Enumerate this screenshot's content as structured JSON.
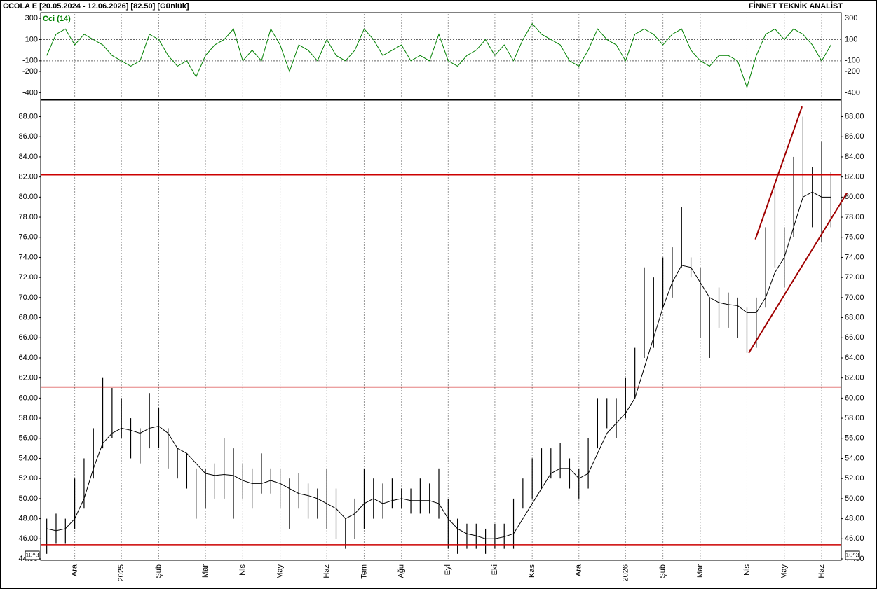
{
  "chart_data": [
    {
      "type": "line",
      "title": "CCOLA E  [20.05.2024 - 12.06.2026]  [82.50]  [Günlük]",
      "subtitle": "FİNNET TEKNİK ANALİST",
      "series": [
        {
          "name": "Cci (14)",
          "color": "#008000",
          "values": [
            -50,
            150,
            200,
            50,
            150,
            100,
            50,
            -50,
            -100,
            -150,
            -100,
            150,
            100,
            -50,
            -150,
            -100,
            -250,
            -50,
            50,
            100,
            200,
            -100,
            0,
            -100,
            200,
            50,
            -200,
            50,
            0,
            -100,
            100,
            -50,
            -100,
            0,
            200,
            100,
            -50,
            0,
            50,
            -100,
            -50,
            -100,
            150,
            -100,
            -150,
            -50,
            0,
            100,
            -50,
            50,
            -100,
            100,
            250,
            150,
            100,
            50,
            -100,
            -150,
            0,
            200,
            100,
            50,
            -100,
            150,
            200,
            150,
            50,
            150,
            200,
            0,
            -100,
            -150,
            -50,
            -50,
            -100,
            -350,
            -50,
            150,
            200,
            100,
            200,
            150,
            50,
            -100,
            50
          ]
        }
      ],
      "ylim": [
        -450,
        340
      ],
      "yticks": [
        300,
        100,
        -100,
        -200,
        -400
      ],
      "grid_values": [
        100,
        -100
      ]
    },
    {
      "type": "ohlc",
      "axis_unit": "10^3",
      "categories": [
        null,
        null,
        null,
        "Ara",
        null,
        null,
        null,
        null,
        "2025",
        null,
        null,
        null,
        "Şub",
        null,
        null,
        null,
        null,
        "Mar",
        null,
        null,
        null,
        "Nis",
        null,
        null,
        null,
        "May",
        null,
        null,
        null,
        null,
        "Haz",
        null,
        null,
        null,
        "Tem",
        null,
        null,
        null,
        "Ağu",
        null,
        null,
        null,
        null,
        "Eyl",
        null,
        null,
        null,
        null,
        "Eki",
        null,
        null,
        null,
        "Kas",
        null,
        null,
        null,
        null,
        "Ara",
        null,
        null,
        null,
        null,
        "2026",
        null,
        null,
        null,
        "Şub",
        null,
        null,
        null,
        "Mar",
        null,
        null,
        null,
        null,
        "Nis",
        null,
        null,
        null,
        "May",
        null,
        null,
        null,
        "Haz",
        null
      ],
      "high": [
        48,
        48.5,
        48,
        52,
        54,
        57,
        62,
        61,
        60,
        58,
        57,
        60.5,
        59,
        57,
        55,
        54.5,
        53,
        53,
        53.5,
        56,
        55,
        53.5,
        53,
        54.5,
        53,
        53,
        52,
        52.5,
        51.5,
        51,
        53,
        51,
        48,
        50,
        53,
        52,
        51.5,
        52,
        51,
        51,
        52,
        51.5,
        53,
        50,
        48,
        47.5,
        47.5,
        47,
        47.5,
        47.5,
        50,
        52,
        54,
        55,
        55,
        55.5,
        54,
        53,
        56,
        60,
        60,
        60,
        62,
        65,
        73,
        72,
        74,
        75,
        79,
        74,
        73,
        70,
        71,
        70.5,
        70,
        69,
        70,
        77,
        81,
        77,
        84,
        88,
        83,
        85.5,
        82.5
      ],
      "low": [
        44.5,
        45.5,
        45.5,
        47,
        49,
        52,
        55,
        56,
        56,
        54,
        53.5,
        55,
        55,
        53,
        52,
        51,
        48,
        49,
        50,
        50,
        48,
        50,
        49,
        50.5,
        50.5,
        49,
        47,
        49,
        48,
        48,
        47,
        46,
        45,
        46,
        47,
        48,
        48,
        49,
        49,
        48.5,
        48.5,
        48.5,
        48,
        45,
        44.5,
        45,
        45,
        44.5,
        45,
        45,
        45,
        49,
        50,
        51,
        52,
        52,
        51,
        50,
        51,
        55,
        57,
        56,
        58,
        60,
        64,
        65,
        69,
        70,
        73,
        72,
        66,
        64,
        67,
        67,
        66,
        64.5,
        65,
        69,
        73,
        71,
        76,
        80,
        77,
        75.5,
        77
      ],
      "ma": {
        "color": "#000000",
        "values": [
          47,
          46.8,
          47,
          48,
          50,
          53,
          55.5,
          56.5,
          57,
          56.8,
          56.5,
          57,
          57.2,
          56.5,
          55,
          54.5,
          53.5,
          52.5,
          52.3,
          52.4,
          52.3,
          51.8,
          51.5,
          51.5,
          51.8,
          51.5,
          51,
          50.5,
          50.3,
          50,
          49.5,
          49,
          48,
          48.5,
          49.5,
          50,
          49.5,
          49.8,
          50,
          49.8,
          49.8,
          49.8,
          49.5,
          48,
          47,
          46.5,
          46.3,
          46,
          46,
          46.2,
          46.5,
          48,
          49.5,
          51,
          52.5,
          53,
          53,
          52,
          52.5,
          54.5,
          56.5,
          57.5,
          58.5,
          60,
          63,
          66,
          69,
          71.5,
          73.2,
          73,
          71.5,
          70,
          69.5,
          69.3,
          69.2,
          68.5,
          68.5,
          70,
          72.5,
          74,
          77,
          80,
          80.5,
          80,
          80
        ]
      },
      "hlines": [
        82.2,
        61.1,
        45.4
      ],
      "line_color": "#cc0000",
      "trendlines": [
        {
          "x": [
            75.9,
            80.9
          ],
          "y": [
            75.8,
            89
          ]
        },
        {
          "x": [
            75.2,
            85.7
          ],
          "y": [
            64.5,
            80.4
          ]
        }
      ],
      "ylim": [
        44,
        89.5
      ],
      "yticks": [
        {
          "value": 44,
          "label": "44.00"
        },
        {
          "value": 46,
          "label": "46.00"
        },
        {
          "value": 48,
          "label": "48.00"
        },
        {
          "value": 50,
          "label": "50.00"
        },
        {
          "value": 52,
          "label": "52.00"
        },
        {
          "value": 54,
          "label": "54.00"
        },
        {
          "value": 56,
          "label": "56.00"
        },
        {
          "value": 58,
          "label": "58.00"
        },
        {
          "value": 60,
          "label": "60.00"
        },
        {
          "value": 62,
          "label": "62.00"
        },
        {
          "value": 64,
          "label": "64.00"
        },
        {
          "value": 66,
          "label": "66.00"
        },
        {
          "value": 68,
          "label": "68.00"
        },
        {
          "value": 70,
          "label": "70.00"
        },
        {
          "value": 72,
          "label": "72.00"
        },
        {
          "value": 74,
          "label": "74.00"
        },
        {
          "value": 76,
          "label": "76.00"
        },
        {
          "value": 78,
          "label": "78.00"
        },
        {
          "value": 80,
          "label": "80.00"
        },
        {
          "value": 82,
          "label": "82.00"
        },
        {
          "value": 84,
          "label": "84.00"
        },
        {
          "value": 86,
          "label": "86.00"
        },
        {
          "value": 88,
          "label": "88.00"
        }
      ]
    }
  ]
}
